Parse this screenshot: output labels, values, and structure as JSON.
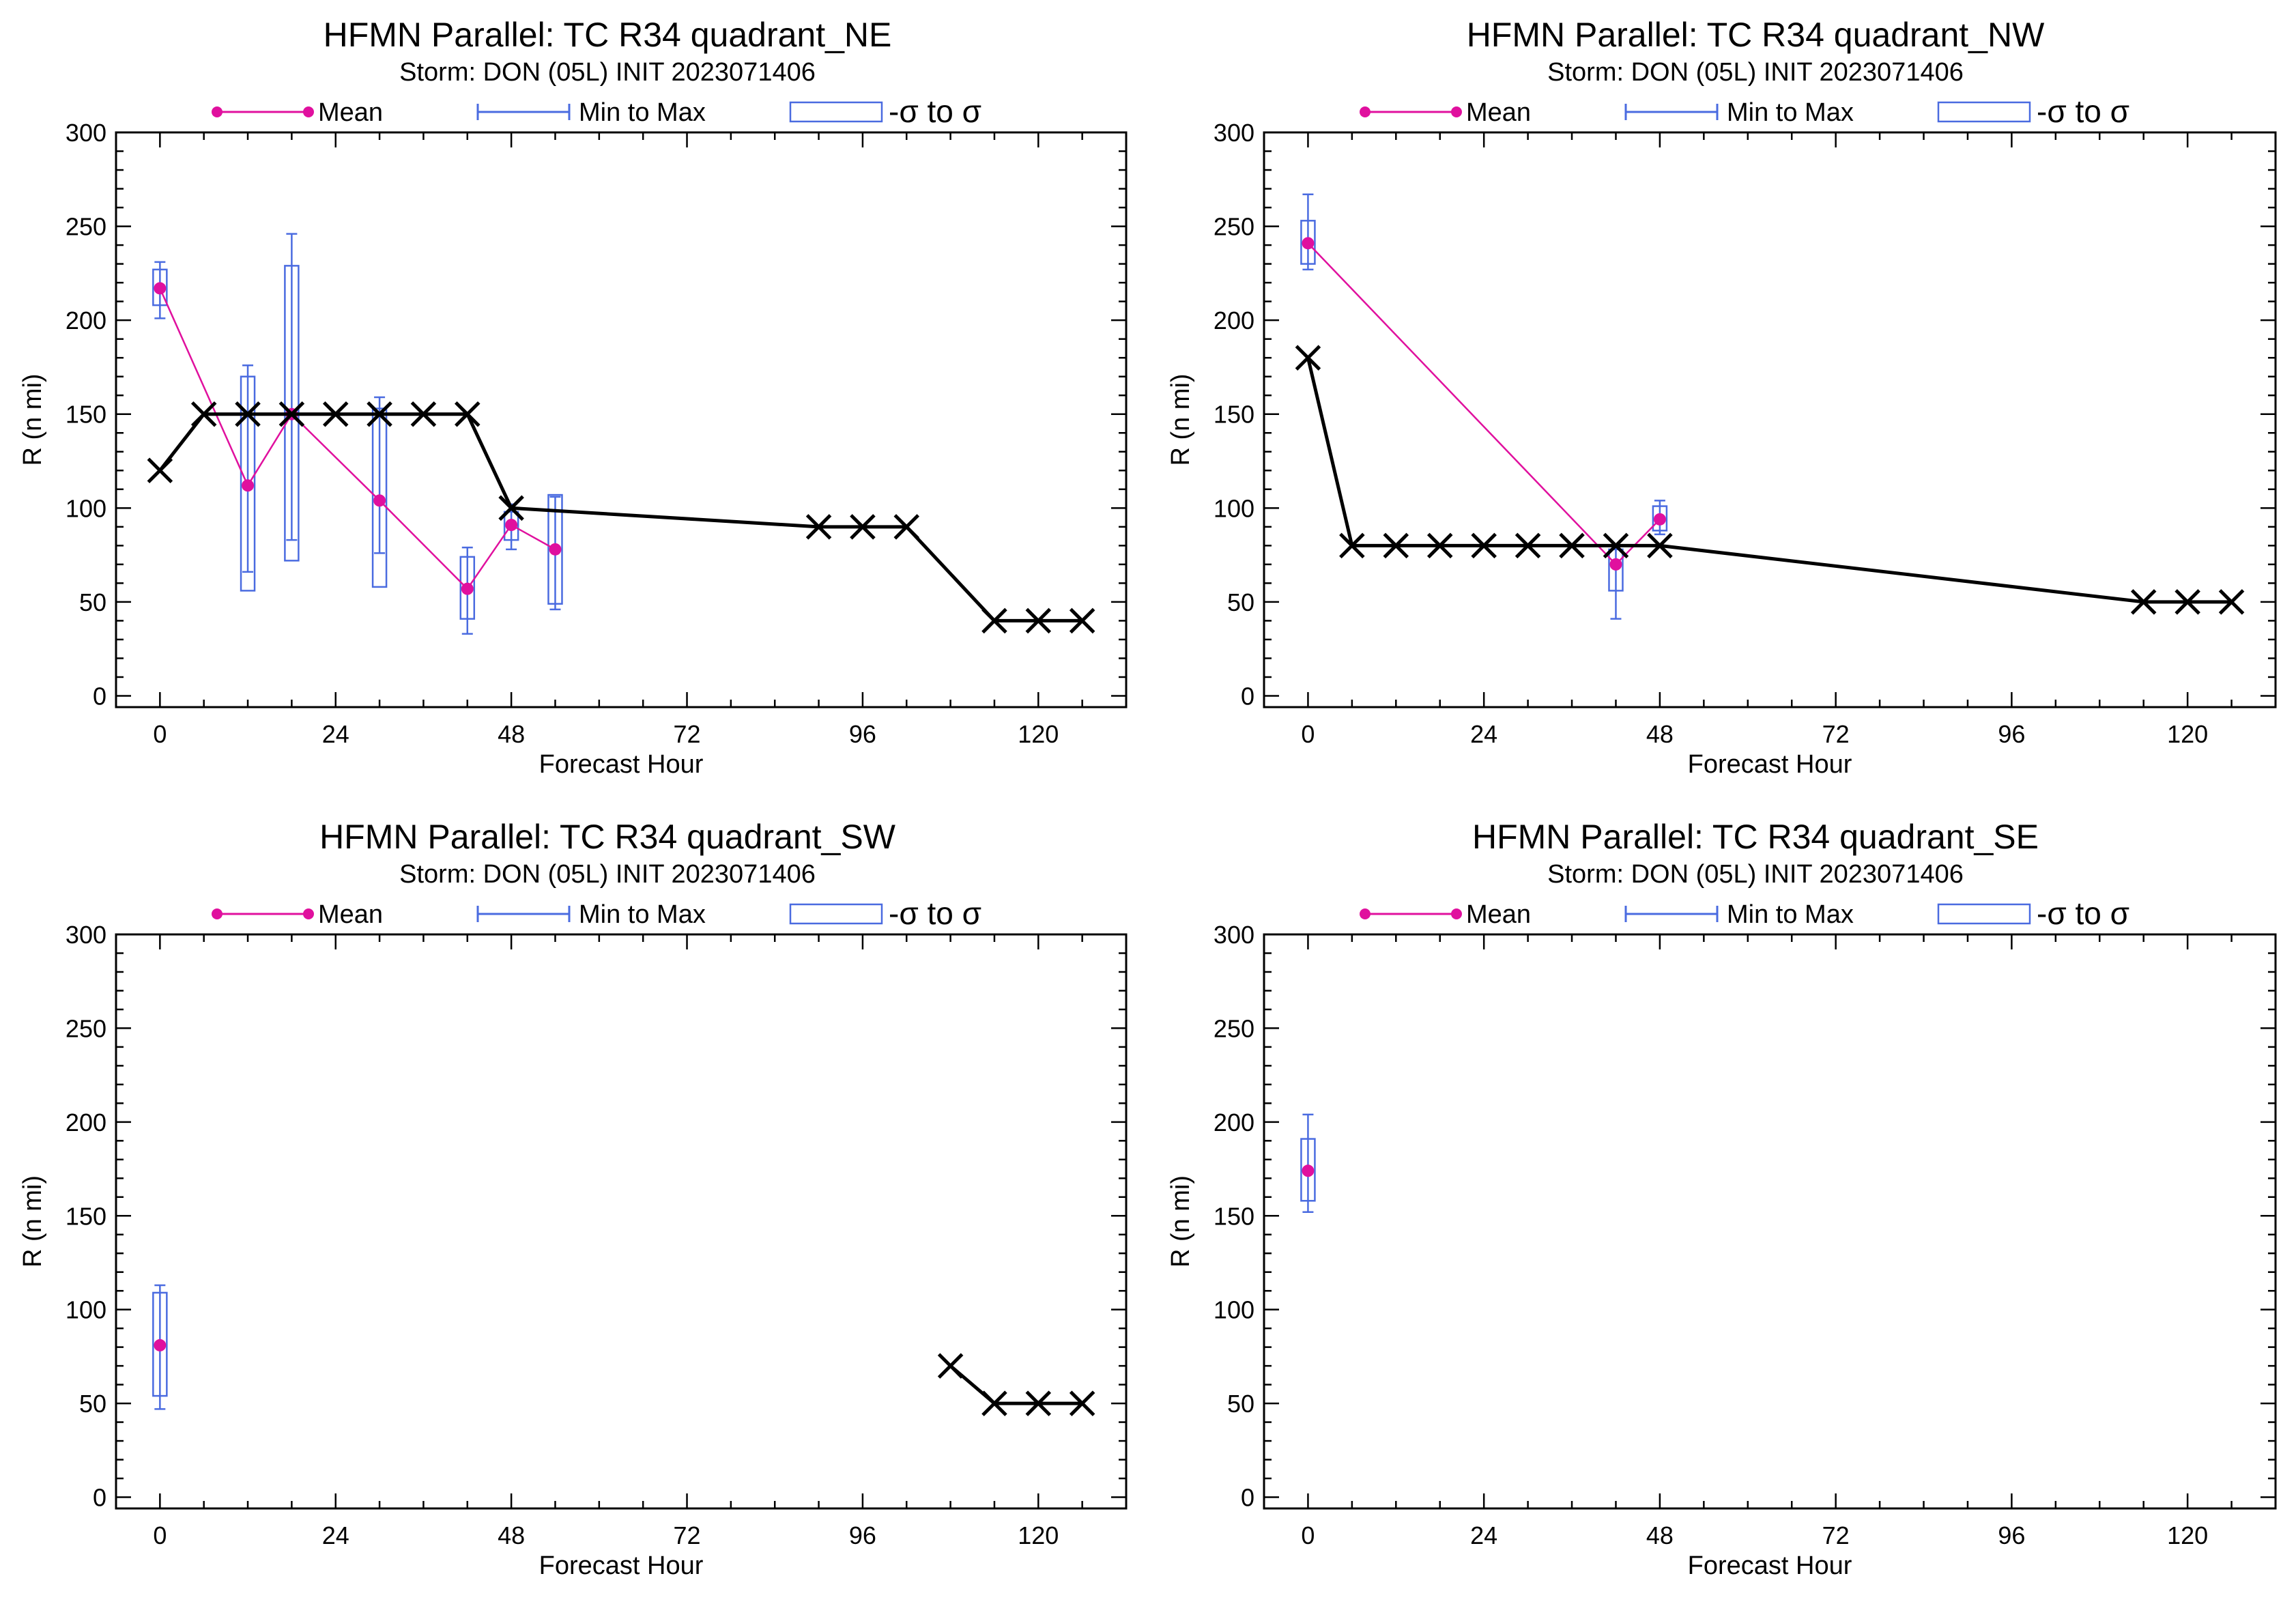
{
  "colors": {
    "mean": "#e0109e",
    "range": "#4a6be0",
    "box": "#4a6be0",
    "obs": "#000000",
    "axis": "#000000"
  },
  "legend": {
    "mean": "Mean",
    "minmax": "Min to Max",
    "sigma": "-σ to σ"
  },
  "chart_data": [
    {
      "type": "box",
      "title": "HFMN Parallel: TC  R34 quadrant_NE",
      "subtitle": "Storm: DON (05L) INIT 2023071406",
      "xlabel": "Forecast Hour",
      "ylabel": "R (n mi)",
      "xlim": [
        -6,
        132
      ],
      "ylim": [
        -6,
        300
      ],
      "xticks": [
        0,
        24,
        48,
        72,
        96,
        120
      ],
      "yticks": [
        0,
        50,
        100,
        150,
        200,
        250,
        300
      ],
      "boxes": [
        {
          "x": 0,
          "min": 201,
          "max": 231,
          "lo": 208,
          "hi": 227,
          "mean": 217
        },
        {
          "x": 12,
          "min": 66,
          "max": 176,
          "lo": 56,
          "hi": 170,
          "mean": 112
        },
        {
          "x": 18,
          "min": 83,
          "max": 246,
          "lo": 72,
          "hi": 229,
          "mean": 150
        },
        {
          "x": 30,
          "min": 76,
          "max": 159,
          "lo": 58,
          "hi": 153,
          "mean": 104
        },
        {
          "x": 42,
          "min": 33,
          "max": 79,
          "lo": 41,
          "hi": 74,
          "mean": 57
        },
        {
          "x": 48,
          "min": 78,
          "max": 102,
          "lo": 83,
          "hi": 98,
          "mean": 91
        },
        {
          "x": 54,
          "min": 46,
          "max": 106,
          "lo": 49,
          "hi": 107,
          "mean": 78
        }
      ],
      "obs": [
        {
          "x": 0,
          "y": 120
        },
        {
          "x": 6,
          "y": 150
        },
        {
          "x": 12,
          "y": 150
        },
        {
          "x": 18,
          "y": 150
        },
        {
          "x": 24,
          "y": 150
        },
        {
          "x": 30,
          "y": 150
        },
        {
          "x": 36,
          "y": 150
        },
        {
          "x": 42,
          "y": 150
        },
        {
          "x": 48,
          "y": 100
        },
        {
          "x": 90,
          "y": 90
        },
        {
          "x": 96,
          "y": 90
        },
        {
          "x": 102,
          "y": 90
        },
        {
          "x": 114,
          "y": 40
        },
        {
          "x": 120,
          "y": 40
        },
        {
          "x": 126,
          "y": 40
        }
      ]
    },
    {
      "type": "box",
      "title": "HFMN Parallel: TC  R34 quadrant_NW",
      "subtitle": "Storm: DON (05L) INIT 2023071406",
      "xlabel": "Forecast Hour",
      "ylabel": "R (n mi)",
      "xlim": [
        -6,
        132
      ],
      "ylim": [
        -6,
        300
      ],
      "xticks": [
        0,
        24,
        48,
        72,
        96,
        120
      ],
      "yticks": [
        0,
        50,
        100,
        150,
        200,
        250,
        300
      ],
      "boxes": [
        {
          "x": 0,
          "min": 227,
          "max": 267,
          "lo": 230,
          "hi": 253,
          "mean": 241
        },
        {
          "x": 42,
          "min": 41,
          "max": 80,
          "lo": 56,
          "hi": 78,
          "mean": 70
        },
        {
          "x": 48,
          "min": 86,
          "max": 104,
          "lo": 88,
          "hi": 101,
          "mean": 94
        }
      ],
      "obs": [
        {
          "x": 0,
          "y": 180
        },
        {
          "x": 6,
          "y": 80
        },
        {
          "x": 12,
          "y": 80
        },
        {
          "x": 18,
          "y": 80
        },
        {
          "x": 24,
          "y": 80
        },
        {
          "x": 30,
          "y": 80
        },
        {
          "x": 36,
          "y": 80
        },
        {
          "x": 42,
          "y": 80
        },
        {
          "x": 48,
          "y": 80
        },
        {
          "x": 114,
          "y": 50
        },
        {
          "x": 120,
          "y": 50
        },
        {
          "x": 126,
          "y": 50
        }
      ]
    },
    {
      "type": "box",
      "title": "HFMN Parallel: TC  R34 quadrant_SW",
      "subtitle": "Storm: DON (05L) INIT 2023071406",
      "xlabel": "Forecast Hour",
      "ylabel": "R (n mi)",
      "xlim": [
        -6,
        132
      ],
      "ylim": [
        -6,
        300
      ],
      "xticks": [
        0,
        24,
        48,
        72,
        96,
        120
      ],
      "yticks": [
        0,
        50,
        100,
        150,
        200,
        250,
        300
      ],
      "boxes": [
        {
          "x": 0,
          "min": 47,
          "max": 113,
          "lo": 54,
          "hi": 109,
          "mean": 81
        }
      ],
      "obs": [
        {
          "x": 108,
          "y": 70
        },
        {
          "x": 114,
          "y": 50
        },
        {
          "x": 120,
          "y": 50
        },
        {
          "x": 126,
          "y": 50
        }
      ]
    },
    {
      "type": "box",
      "title": "HFMN Parallel: TC  R34 quadrant_SE",
      "subtitle": "Storm: DON (05L) INIT 2023071406",
      "xlabel": "Forecast Hour",
      "ylabel": "R (n mi)",
      "xlim": [
        -6,
        132
      ],
      "ylim": [
        -6,
        300
      ],
      "xticks": [
        0,
        24,
        48,
        72,
        96,
        120
      ],
      "yticks": [
        0,
        50,
        100,
        150,
        200,
        250,
        300
      ],
      "boxes": [
        {
          "x": 0,
          "min": 152,
          "max": 204,
          "lo": 158,
          "hi": 191,
          "mean": 174
        }
      ],
      "obs": []
    }
  ]
}
